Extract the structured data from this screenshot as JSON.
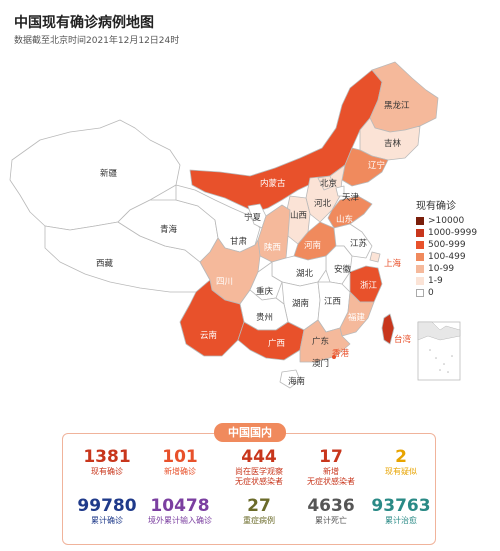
{
  "title": "中国现有确诊病例地图",
  "subtitle": "数据截至北京时间2021年12月12日24时",
  "legend": {
    "title": "现有确诊",
    "items": [
      {
        "label": ">10000",
        "color": "#7a1e0a"
      },
      {
        "label": "1000-9999",
        "color": "#c8361c"
      },
      {
        "label": "500-999",
        "color": "#e8512b"
      },
      {
        "label": "100-499",
        "color": "#f08a5d"
      },
      {
        "label": "10-99",
        "color": "#f5b99b"
      },
      {
        "label": "1-9",
        "color": "#fbe3d6"
      },
      {
        "label": "0",
        "color": "#ffffff"
      }
    ]
  },
  "provinces": {
    "xinjiang": "新疆",
    "xizang": "西藏",
    "qinghai": "青海",
    "gansu": "甘肃",
    "neimenggu": "内蒙古",
    "heilongjiang": "黑龙江",
    "jilin": "吉林",
    "liaoning": "辽宁",
    "beijing": "北京",
    "tianjin": "天津",
    "hebei": "河北",
    "shanxi": "山西",
    "shandong": "山东",
    "ningxia": "宁夏",
    "shaanxi": "陕西",
    "henan": "河南",
    "jiangsu": "江苏",
    "shanghai": "上海",
    "anhui": "安徽",
    "hubei": "湖北",
    "sichuan": "四川",
    "chongqing": "重庆",
    "zhejiang": "浙江",
    "hunan": "湖南",
    "jiangxi": "江西",
    "guizhou": "贵州",
    "yunnan": "云南",
    "guangxi": "广西",
    "guangdong": "广东",
    "fujian": "福建",
    "taiwan": "台湾",
    "xianggang": "香港",
    "aomen": "澳门",
    "hainan": "海南"
  },
  "stats": {
    "header": "中国国内",
    "row1": [
      {
        "value": "1381",
        "label": "现有确诊",
        "color": "#c8361c"
      },
      {
        "value": "101",
        "label": "新增确诊",
        "color": "#e8512b"
      },
      {
        "value": "444",
        "label": "尚在医学观察\n无症状感染者",
        "color": "#c8361c"
      },
      {
        "value": "17",
        "label": "新增\n无症状感染者",
        "color": "#c8361c"
      },
      {
        "value": "2",
        "label": "现有疑似",
        "color": "#e8a400"
      }
    ],
    "row2": [
      {
        "value": "99780",
        "label": "累计确诊",
        "color": "#1f3a8a"
      },
      {
        "value": "10478",
        "label": "境外累计输入确诊",
        "color": "#7b3fa0"
      },
      {
        "value": "27",
        "label": "重症病例",
        "color": "#6b6b2a"
      },
      {
        "value": "4636",
        "label": "累计死亡",
        "color": "#555555"
      },
      {
        "value": "93763",
        "label": "累计治愈",
        "color": "#2a8a86"
      }
    ]
  }
}
